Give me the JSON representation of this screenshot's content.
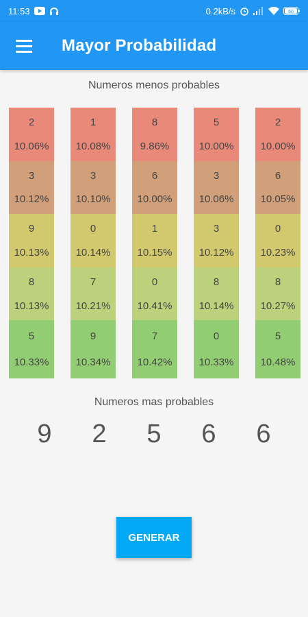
{
  "status_bar": {
    "time": "11:53",
    "network_speed": "0.2kB/s",
    "battery": "60",
    "left_icons": [
      "youtube-icon",
      "headset-icon"
    ],
    "right_icons": [
      "alarm-icon",
      "signal-icon",
      "wifi-icon",
      "battery-icon"
    ]
  },
  "app_bar": {
    "title": "Mayor Probabilidad",
    "menu_icon": "hamburger-menu-icon"
  },
  "labels": {
    "less_probable": "Numeros menos probables",
    "more_probable": "Numeros mas probables"
  },
  "row_colors": [
    "#e8897a",
    "#d19f7a",
    "#d2c96e",
    "#bcd17c",
    "#92cc73"
  ],
  "columns": [
    {
      "cells": [
        {
          "num": "2",
          "pct": "10.06%"
        },
        {
          "num": "3",
          "pct": "10.12%"
        },
        {
          "num": "9",
          "pct": "10.13%"
        },
        {
          "num": "8",
          "pct": "10.13%"
        },
        {
          "num": "5",
          "pct": "10.33%"
        }
      ]
    },
    {
      "cells": [
        {
          "num": "1",
          "pct": "10.08%"
        },
        {
          "num": "3",
          "pct": "10.10%"
        },
        {
          "num": "0",
          "pct": "10.14%"
        },
        {
          "num": "7",
          "pct": "10.21%"
        },
        {
          "num": "9",
          "pct": "10.34%"
        }
      ]
    },
    {
      "cells": [
        {
          "num": "8",
          "pct": "9.86%"
        },
        {
          "num": "6",
          "pct": "10.00%"
        },
        {
          "num": "1",
          "pct": "10.15%"
        },
        {
          "num": "0",
          "pct": "10.41%"
        },
        {
          "num": "7",
          "pct": "10.42%"
        }
      ]
    },
    {
      "cells": [
        {
          "num": "5",
          "pct": "10.00%"
        },
        {
          "num": "3",
          "pct": "10.06%"
        },
        {
          "num": "3",
          "pct": "10.12%"
        },
        {
          "num": "8",
          "pct": "10.14%"
        },
        {
          "num": "0",
          "pct": "10.33%"
        }
      ]
    },
    {
      "cells": [
        {
          "num": "2",
          "pct": "10.00%"
        },
        {
          "num": "6",
          "pct": "10.05%"
        },
        {
          "num": "0",
          "pct": "10.23%"
        },
        {
          "num": "8",
          "pct": "10.27%"
        },
        {
          "num": "5",
          "pct": "10.48%"
        }
      ]
    }
  ],
  "most_probable": [
    "9",
    "2",
    "5",
    "6",
    "6"
  ],
  "generate_button": {
    "label": "GENERAR"
  }
}
